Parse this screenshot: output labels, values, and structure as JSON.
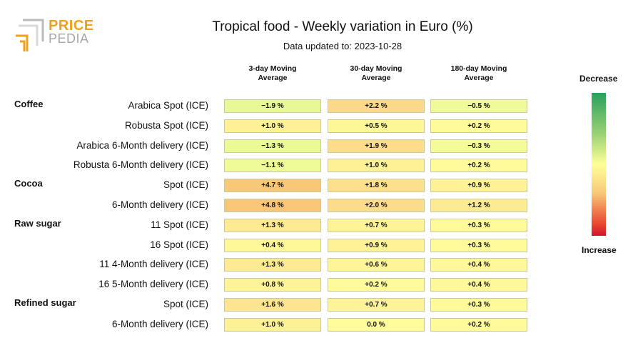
{
  "logo": {
    "line1": "PRICE",
    "line2": "PEDIA"
  },
  "title": "Tropical food - Weekly variation in Euro (%)",
  "subtitle": "Data updated to: 2023-10-28",
  "legend": {
    "top": "Decrease",
    "bottom": "Increase"
  },
  "chart_data": {
    "type": "table",
    "columns": [
      "3-day Moving Average",
      "30-day Moving Average",
      "180-day Moving Average"
    ],
    "column_lines": [
      [
        "3-day Moving",
        "Average"
      ],
      [
        "30-day Moving",
        "Average"
      ],
      [
        "180-day Moving",
        "Average"
      ]
    ],
    "groups": [
      "Coffee",
      "Cocoa",
      "Raw sugar",
      "Refined sugar"
    ],
    "rows": [
      {
        "group": "Coffee",
        "label": "Arabica Spot (ICE)",
        "values": [
          "-1.9 %",
          "+2.2 %",
          "-0.5 %"
        ],
        "colors": [
          "#e8f896",
          "#fcd88a",
          "#f0fa98"
        ]
      },
      {
        "group": "",
        "label": "Robusta Spot (ICE)",
        "values": [
          "+1.0 %",
          "+0.5 %",
          "+0.2 %"
        ],
        "colors": [
          "#fdf195",
          "#fef798",
          "#fffb99"
        ]
      },
      {
        "group": "",
        "label": "Arabica 6-Month delivery (ICE)",
        "values": [
          "-1.3 %",
          "+1.9 %",
          "-0.3 %"
        ],
        "colors": [
          "#ecfa96",
          "#fcdd8c",
          "#f4fb98"
        ]
      },
      {
        "group": "",
        "label": "Robusta 6-Month delivery (ICE)",
        "values": [
          "-1.1 %",
          "+1.0 %",
          "+0.2 %"
        ],
        "colors": [
          "#eefb97",
          "#fdf195",
          "#fffb99"
        ]
      },
      {
        "group": "Cocoa",
        "label": "Spot (ICE)",
        "values": [
          "+4.7 %",
          "+1.8 %",
          "+0.9 %"
        ],
        "colors": [
          "#f8c878",
          "#fde08e",
          "#fdf296"
        ]
      },
      {
        "group": "",
        "label": "6-Month delivery (ICE)",
        "values": [
          "+4.8 %",
          "+2.0 %",
          "+1.2 %"
        ],
        "colors": [
          "#f8c676",
          "#fcdc8c",
          "#fdeb93"
        ]
      },
      {
        "group": "Raw sugar",
        "label": "11 Spot (ICE)",
        "values": [
          "+1.3 %",
          "+0.7 %",
          "+0.3 %"
        ],
        "colors": [
          "#fdea92",
          "#fef497",
          "#fffa99"
        ]
      },
      {
        "group": "",
        "label": "16 Spot (ICE)",
        "values": [
          "+0.4 %",
          "+0.9 %",
          "+0.3 %"
        ],
        "colors": [
          "#fff898",
          "#fdf296",
          "#fffa99"
        ]
      },
      {
        "group": "",
        "label": "11 4-Month delivery (ICE)",
        "values": [
          "+1.3 %",
          "+0.6 %",
          "+0.4 %"
        ],
        "colors": [
          "#fdea92",
          "#fef597",
          "#fff898"
        ]
      },
      {
        "group": "",
        "label": "16 5-Month delivery (ICE)",
        "values": [
          "+0.8 %",
          "+0.2 %",
          "+0.4 %"
        ],
        "colors": [
          "#fef396",
          "#fffb99",
          "#fff898"
        ]
      },
      {
        "group": "Refined sugar",
        "label": "Spot (ICE)",
        "values": [
          "+1.6 %",
          "+0.7 %",
          "+0.3 %"
        ],
        "colors": [
          "#fde490",
          "#fef497",
          "#fffa99"
        ]
      },
      {
        "group": "",
        "label": "6-Month delivery (ICE)",
        "values": [
          "+1.0 %",
          "0.0 %",
          "+0.2 %"
        ],
        "colors": [
          "#fdf195",
          "#fffc9a",
          "#fffb99"
        ]
      }
    ]
  }
}
